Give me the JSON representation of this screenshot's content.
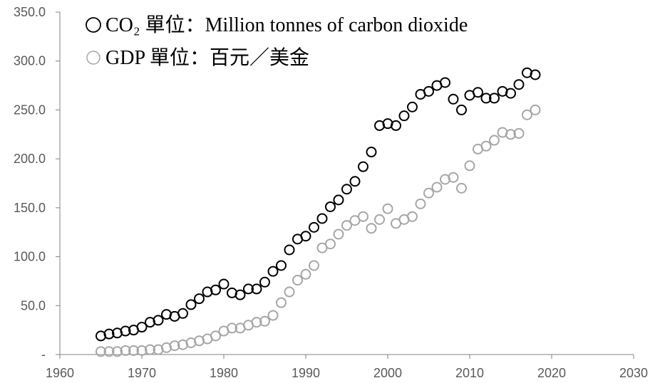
{
  "chart_data": {
    "type": "scatter",
    "title": "",
    "xlabel": "",
    "ylabel": "",
    "xlim": [
      1960,
      2030
    ],
    "ylim": [
      0,
      350
    ],
    "x_ticks": [
      1960,
      1970,
      1980,
      1990,
      2000,
      2010,
      2020,
      2030
    ],
    "x_tick_labels": [
      "1960",
      "1970",
      "1980",
      "1990",
      "2000",
      "2010",
      "2020",
      "2030"
    ],
    "y_ticks": [
      0,
      50,
      100,
      150,
      200,
      250,
      300,
      350
    ],
    "y_tick_labels": [
      "-",
      "50.0",
      "100.0",
      "150.0",
      "200.0",
      "250.0",
      "300.0",
      "350.0"
    ],
    "grid": false,
    "legend_position": "top-left",
    "legend": [
      {
        "symbol": "○",
        "text": "CO₂ 單位：Million tonnes of carbon dioxide",
        "color": "#000000"
      },
      {
        "symbol": "○",
        "text": "GDP 單位：百元／美金",
        "color": "#a6a6a6"
      }
    ],
    "x": [
      1965,
      1966,
      1967,
      1968,
      1969,
      1970,
      1971,
      1972,
      1973,
      1974,
      1975,
      1976,
      1977,
      1978,
      1979,
      1980,
      1981,
      1982,
      1983,
      1984,
      1985,
      1986,
      1987,
      1988,
      1989,
      1990,
      1991,
      1992,
      1993,
      1994,
      1995,
      1996,
      1997,
      1998,
      1999,
      2000,
      2001,
      2002,
      2003,
      2004,
      2005,
      2006,
      2007,
      2008,
      2009,
      2010,
      2011,
      2012,
      2013,
      2014,
      2015,
      2016,
      2017,
      2018
    ],
    "series": [
      {
        "name": "CO₂",
        "color": "#000000",
        "values": [
          19,
          21,
          22,
          24,
          25,
          28,
          33,
          35,
          41,
          39,
          42,
          51,
          57,
          64,
          66,
          72,
          63,
          61,
          67,
          67,
          74,
          85,
          91,
          107,
          118,
          121,
          130,
          139,
          151,
          158,
          169,
          177,
          192,
          207,
          234,
          236,
          234,
          244,
          253,
          266,
          269,
          275,
          278,
          261,
          250,
          265,
          268,
          262,
          262,
          269,
          267,
          276,
          288,
          286
        ]
      },
      {
        "name": "GDP",
        "color": "#a6a6a6",
        "values": [
          3,
          3,
          3,
          4,
          4,
          4,
          5,
          5,
          7,
          9,
          10,
          12,
          14,
          16,
          19,
          24,
          27,
          27,
          30,
          33,
          34,
          40,
          53,
          64,
          76,
          82,
          91,
          109,
          113,
          123,
          132,
          137,
          141,
          129,
          138,
          149,
          134,
          138,
          141,
          154,
          165,
          171,
          179,
          181,
          170,
          193,
          210,
          213,
          219,
          227,
          225,
          226,
          245,
          250
        ]
      }
    ]
  }
}
